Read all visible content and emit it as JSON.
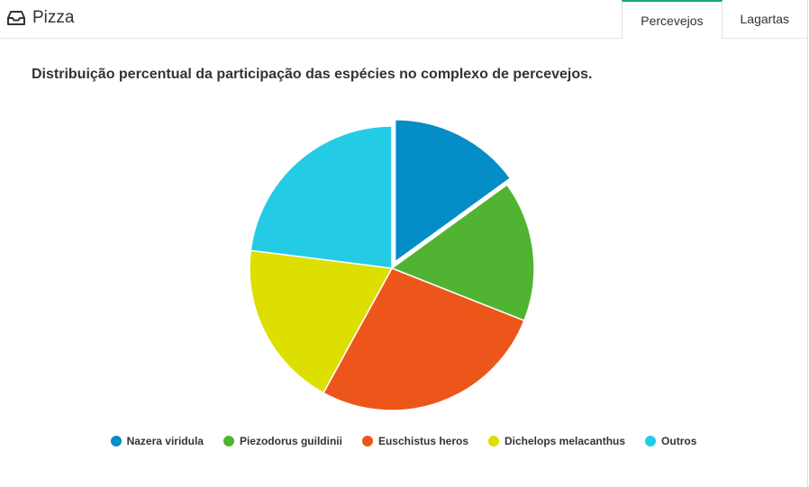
{
  "header": {
    "title": "Pizza",
    "icon": "inbox-icon"
  },
  "tabs": [
    {
      "label": "Percevejos",
      "active": true
    },
    {
      "label": "Lagartas",
      "active": false
    }
  ],
  "chart_data": {
    "type": "pie",
    "title": "Distribuição percentual da participação das espécies no complexo de percevejos.",
    "legend_position": "bottom",
    "exploded": "Nazera viridula",
    "series": [
      {
        "name": "Nazera viridula",
        "value": 15,
        "color": "#058dc7"
      },
      {
        "name": "Piezodorus guildinii",
        "value": 16,
        "color": "#50b432"
      },
      {
        "name": "Euschistus heros",
        "value": 27,
        "color": "#ed561b"
      },
      {
        "name": "Dichelops melacanthus",
        "value": 19,
        "color": "#dddf00"
      },
      {
        "name": "Outros",
        "value": 23,
        "color": "#24cbe5"
      }
    ]
  }
}
